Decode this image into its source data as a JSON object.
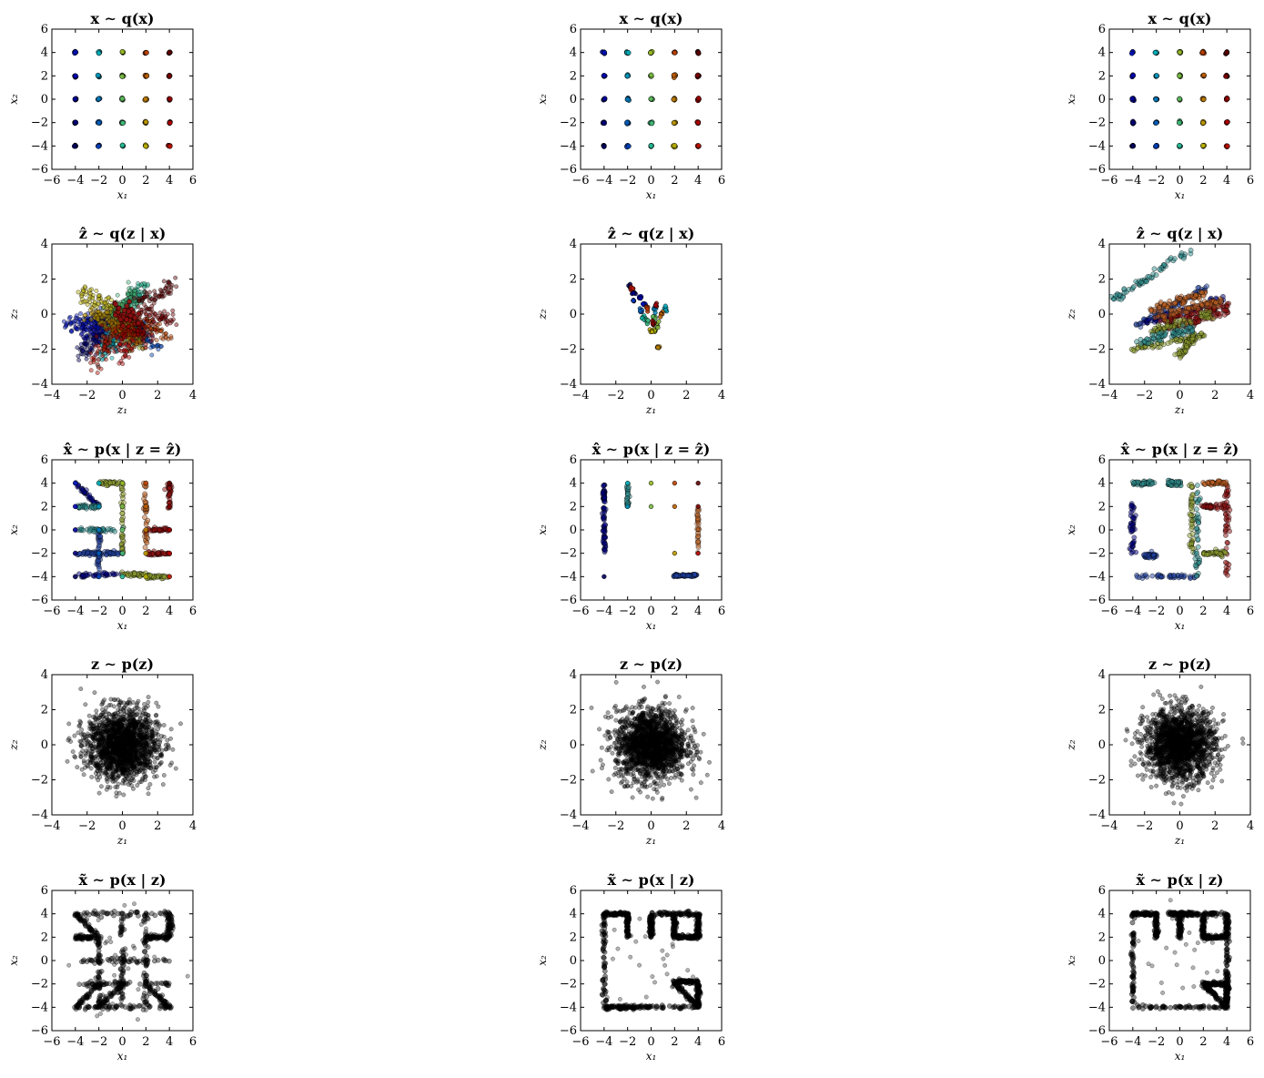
{
  "figure": {
    "rows": 5,
    "cols": 3
  },
  "chart_data": [
    {
      "type": "scatter",
      "title": "x ∼ q(x)",
      "xlabel": "x₁",
      "ylabel": "x₂",
      "xlim": [
        -6,
        6
      ],
      "ylim": [
        -6,
        6
      ],
      "xticks": [
        -6,
        -4,
        -2,
        0,
        2,
        4,
        6
      ],
      "yticks": [
        -6,
        -4,
        -2,
        0,
        2,
        4,
        6
      ],
      "style": "grid_data",
      "variant": 0
    },
    {
      "type": "scatter",
      "title": "x ∼ q(x)",
      "xlabel": "x₁",
      "ylabel": "x₂",
      "xlim": [
        -6,
        6
      ],
      "ylim": [
        -6,
        6
      ],
      "xticks": [
        -6,
        -4,
        -2,
        0,
        2,
        4,
        6
      ],
      "yticks": [
        -6,
        -4,
        -2,
        0,
        2,
        4,
        6
      ],
      "style": "grid_data",
      "variant": 1
    },
    {
      "type": "scatter",
      "title": "x ∼ q(x)",
      "xlabel": "x₁",
      "ylabel": "x₂",
      "xlim": [
        -6,
        6
      ],
      "ylim": [
        -6,
        6
      ],
      "xticks": [
        -6,
        -4,
        -2,
        0,
        2,
        4,
        6
      ],
      "yticks": [
        -6,
        -4,
        -2,
        0,
        2,
        4,
        6
      ],
      "style": "grid_data",
      "variant": 2
    },
    {
      "type": "scatter",
      "title": "ẑ ∼ q(z | x)",
      "xlabel": "z₁",
      "ylabel": "z₂",
      "xlim": [
        -4,
        4
      ],
      "ylim": [
        -4,
        4
      ],
      "xticks": [
        -4,
        -2,
        0,
        2,
        4
      ],
      "yticks": [
        -4,
        -2,
        0,
        2,
        4
      ],
      "style": "latent_flower",
      "variant": 0
    },
    {
      "type": "scatter",
      "title": "ẑ ∼ q(z | x)",
      "xlabel": "z₁",
      "ylabel": "z₂",
      "xlim": [
        -4,
        4
      ],
      "ylim": [
        -4,
        4
      ],
      "xticks": [
        -4,
        -2,
        0,
        2,
        4
      ],
      "yticks": [
        -4,
        -2,
        0,
        2,
        4
      ],
      "style": "latent_small",
      "variant": 1
    },
    {
      "type": "scatter",
      "title": "ẑ ∼ q(z | x)",
      "xlabel": "z₁",
      "ylabel": "z₂",
      "xlim": [
        -4,
        4
      ],
      "ylim": [
        -4,
        4
      ],
      "xticks": [
        -4,
        -2,
        0,
        2,
        4
      ],
      "yticks": [
        -4,
        -2,
        0,
        2,
        4
      ],
      "style": "latent_streaks",
      "variant": 2
    },
    {
      "type": "scatter",
      "title": "x̂ ∼ p(x | z = ẑ)",
      "xlabel": "x₁",
      "ylabel": "x₂",
      "xlim": [
        -6,
        6
      ],
      "ylim": [
        -6,
        6
      ],
      "xticks": [
        -6,
        -4,
        -2,
        0,
        2,
        4,
        6
      ],
      "yticks": [
        -6,
        -4,
        -2,
        0,
        2,
        4,
        6
      ],
      "style": "recon_a",
      "variant": 0
    },
    {
      "type": "scatter",
      "title": "x̂ ∼ p(x | z = ẑ)",
      "xlabel": "x₁",
      "ylabel": "x₂",
      "xlim": [
        -6,
        6
      ],
      "ylim": [
        -6,
        6
      ],
      "xticks": [
        -6,
        -4,
        -2,
        0,
        2,
        4,
        6
      ],
      "yticks": [
        -6,
        -4,
        -2,
        0,
        2,
        4,
        6
      ],
      "style": "recon_b",
      "variant": 1
    },
    {
      "type": "scatter",
      "title": "x̂ ∼ p(x | z = ẑ)",
      "xlabel": "x₁",
      "ylabel": "x₂",
      "xlim": [
        -6,
        6
      ],
      "ylim": [
        -6,
        6
      ],
      "xticks": [
        -6,
        -4,
        -2,
        0,
        2,
        4,
        6
      ],
      "yticks": [
        -6,
        -4,
        -2,
        0,
        2,
        4,
        6
      ],
      "style": "recon_c",
      "variant": 2
    },
    {
      "type": "scatter",
      "title": "z ∼ p(z)",
      "xlabel": "z₁",
      "ylabel": "z₂",
      "xlim": [
        -4,
        4
      ],
      "ylim": [
        -4,
        4
      ],
      "xticks": [
        -4,
        -2,
        0,
        2,
        4
      ],
      "yticks": [
        -4,
        -2,
        0,
        2,
        4
      ],
      "style": "prior_gauss",
      "variant": 0
    },
    {
      "type": "scatter",
      "title": "z ∼ p(z)",
      "xlabel": "z₁",
      "ylabel": "z₂",
      "xlim": [
        -4,
        4
      ],
      "ylim": [
        -4,
        4
      ],
      "xticks": [
        -4,
        -2,
        0,
        2,
        4
      ],
      "yticks": [
        -4,
        -2,
        0,
        2,
        4
      ],
      "style": "prior_gauss",
      "variant": 1
    },
    {
      "type": "scatter",
      "title": "z ∼ p(z)",
      "xlabel": "z₁",
      "ylabel": "z₂",
      "xlim": [
        -4,
        4
      ],
      "ylim": [
        -4,
        4
      ],
      "xticks": [
        -4,
        -2,
        0,
        2,
        4
      ],
      "yticks": [
        -4,
        -2,
        0,
        2,
        4
      ],
      "style": "prior_gauss",
      "variant": 2
    },
    {
      "type": "scatter",
      "title": "x̃ ∼ p(x | z)",
      "xlabel": "x₁",
      "ylabel": "x₂",
      "xlim": [
        -6,
        6
      ],
      "ylim": [
        -6,
        6
      ],
      "xticks": [
        -6,
        -4,
        -2,
        0,
        2,
        4,
        6
      ],
      "yticks": [
        -6,
        -4,
        -2,
        0,
        2,
        4,
        6
      ],
      "style": "gen_a",
      "variant": 0
    },
    {
      "type": "scatter",
      "title": "x̃ ∼ p(x | z)",
      "xlabel": "x₁",
      "ylabel": "x₂",
      "xlim": [
        -6,
        6
      ],
      "ylim": [
        -6,
        6
      ],
      "xticks": [
        -6,
        -4,
        -2,
        0,
        2,
        4,
        6
      ],
      "yticks": [
        -6,
        -4,
        -2,
        0,
        2,
        4,
        6
      ],
      "style": "gen_b",
      "variant": 1
    },
    {
      "type": "scatter",
      "title": "x̃ ∼ p(x | z)",
      "xlabel": "x₁",
      "ylabel": "x₂",
      "xlim": [
        -6,
        6
      ],
      "ylim": [
        -6,
        6
      ],
      "xticks": [
        -6,
        -4,
        -2,
        0,
        2,
        4,
        6
      ],
      "yticks": [
        -6,
        -4,
        -2,
        0,
        2,
        4,
        6
      ],
      "style": "gen_c",
      "variant": 2
    }
  ],
  "colors": {
    "jet_dark_blue": "#00007f",
    "jet_blue": "#1f3f9f",
    "jet_teal": "#2f8f8f",
    "jet_olive": "#8fa02f",
    "jet_orange": "#c06020",
    "jet_red": "#8f1010",
    "black": "#000000"
  }
}
